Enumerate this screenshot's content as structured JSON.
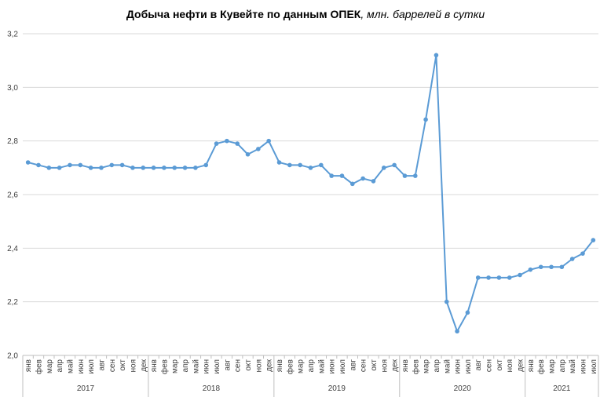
{
  "chart_data": {
    "type": "line",
    "title_main": "Добыча  нефти в Кувейте по данным  ОПЕК",
    "title_unit": ", млн. баррелей в сутки",
    "ylim": [
      2.0,
      3.2
    ],
    "yticks": [
      "2,0",
      "2,2",
      "2,4",
      "2,6",
      "2,8",
      "3,0",
      "3,2"
    ],
    "ytick_values": [
      2.0,
      2.2,
      2.4,
      2.6,
      2.8,
      3.0,
      3.2
    ],
    "grid": true,
    "line_color": "#5b9bd5",
    "grid_color": "#d9d9d9",
    "years": [
      {
        "label": "2017",
        "start": 0,
        "count": 12
      },
      {
        "label": "2018",
        "start": 12,
        "count": 12
      },
      {
        "label": "2019",
        "start": 24,
        "count": 12
      },
      {
        "label": "2020",
        "start": 36,
        "count": 12
      },
      {
        "label": "2021",
        "start": 48,
        "count": 7
      }
    ],
    "categories": [
      "янв",
      "фев",
      "мар",
      "апр",
      "май",
      "июн",
      "июл",
      "авг",
      "сен",
      "окт",
      "ноя",
      "дек",
      "янв",
      "фев",
      "мар",
      "апр",
      "май",
      "июн",
      "июл",
      "авг",
      "сен",
      "окт",
      "ноя",
      "дек",
      "янв",
      "фев",
      "мар",
      "апр",
      "май",
      "июн",
      "июл",
      "авг",
      "сен",
      "окт",
      "ноя",
      "дек",
      "янв",
      "фев",
      "мар",
      "апр",
      "май",
      "июн",
      "июл",
      "авг",
      "сен",
      "окт",
      "ноя",
      "дек",
      "янв",
      "фев",
      "мар",
      "апр",
      "май",
      "июн",
      "июл"
    ],
    "values": [
      2.72,
      2.71,
      2.7,
      2.7,
      2.71,
      2.71,
      2.7,
      2.7,
      2.71,
      2.71,
      2.7,
      2.7,
      2.7,
      2.7,
      2.7,
      2.7,
      2.7,
      2.71,
      2.79,
      2.8,
      2.79,
      2.75,
      2.77,
      2.8,
      2.72,
      2.71,
      2.71,
      2.7,
      2.71,
      2.67,
      2.67,
      2.64,
      2.66,
      2.65,
      2.7,
      2.71,
      2.67,
      2.67,
      2.88,
      3.12,
      2.2,
      2.09,
      2.16,
      2.29,
      2.29,
      2.29,
      2.29,
      2.3,
      2.32,
      2.33,
      2.33,
      2.33,
      2.36,
      2.38,
      2.43
    ]
  }
}
